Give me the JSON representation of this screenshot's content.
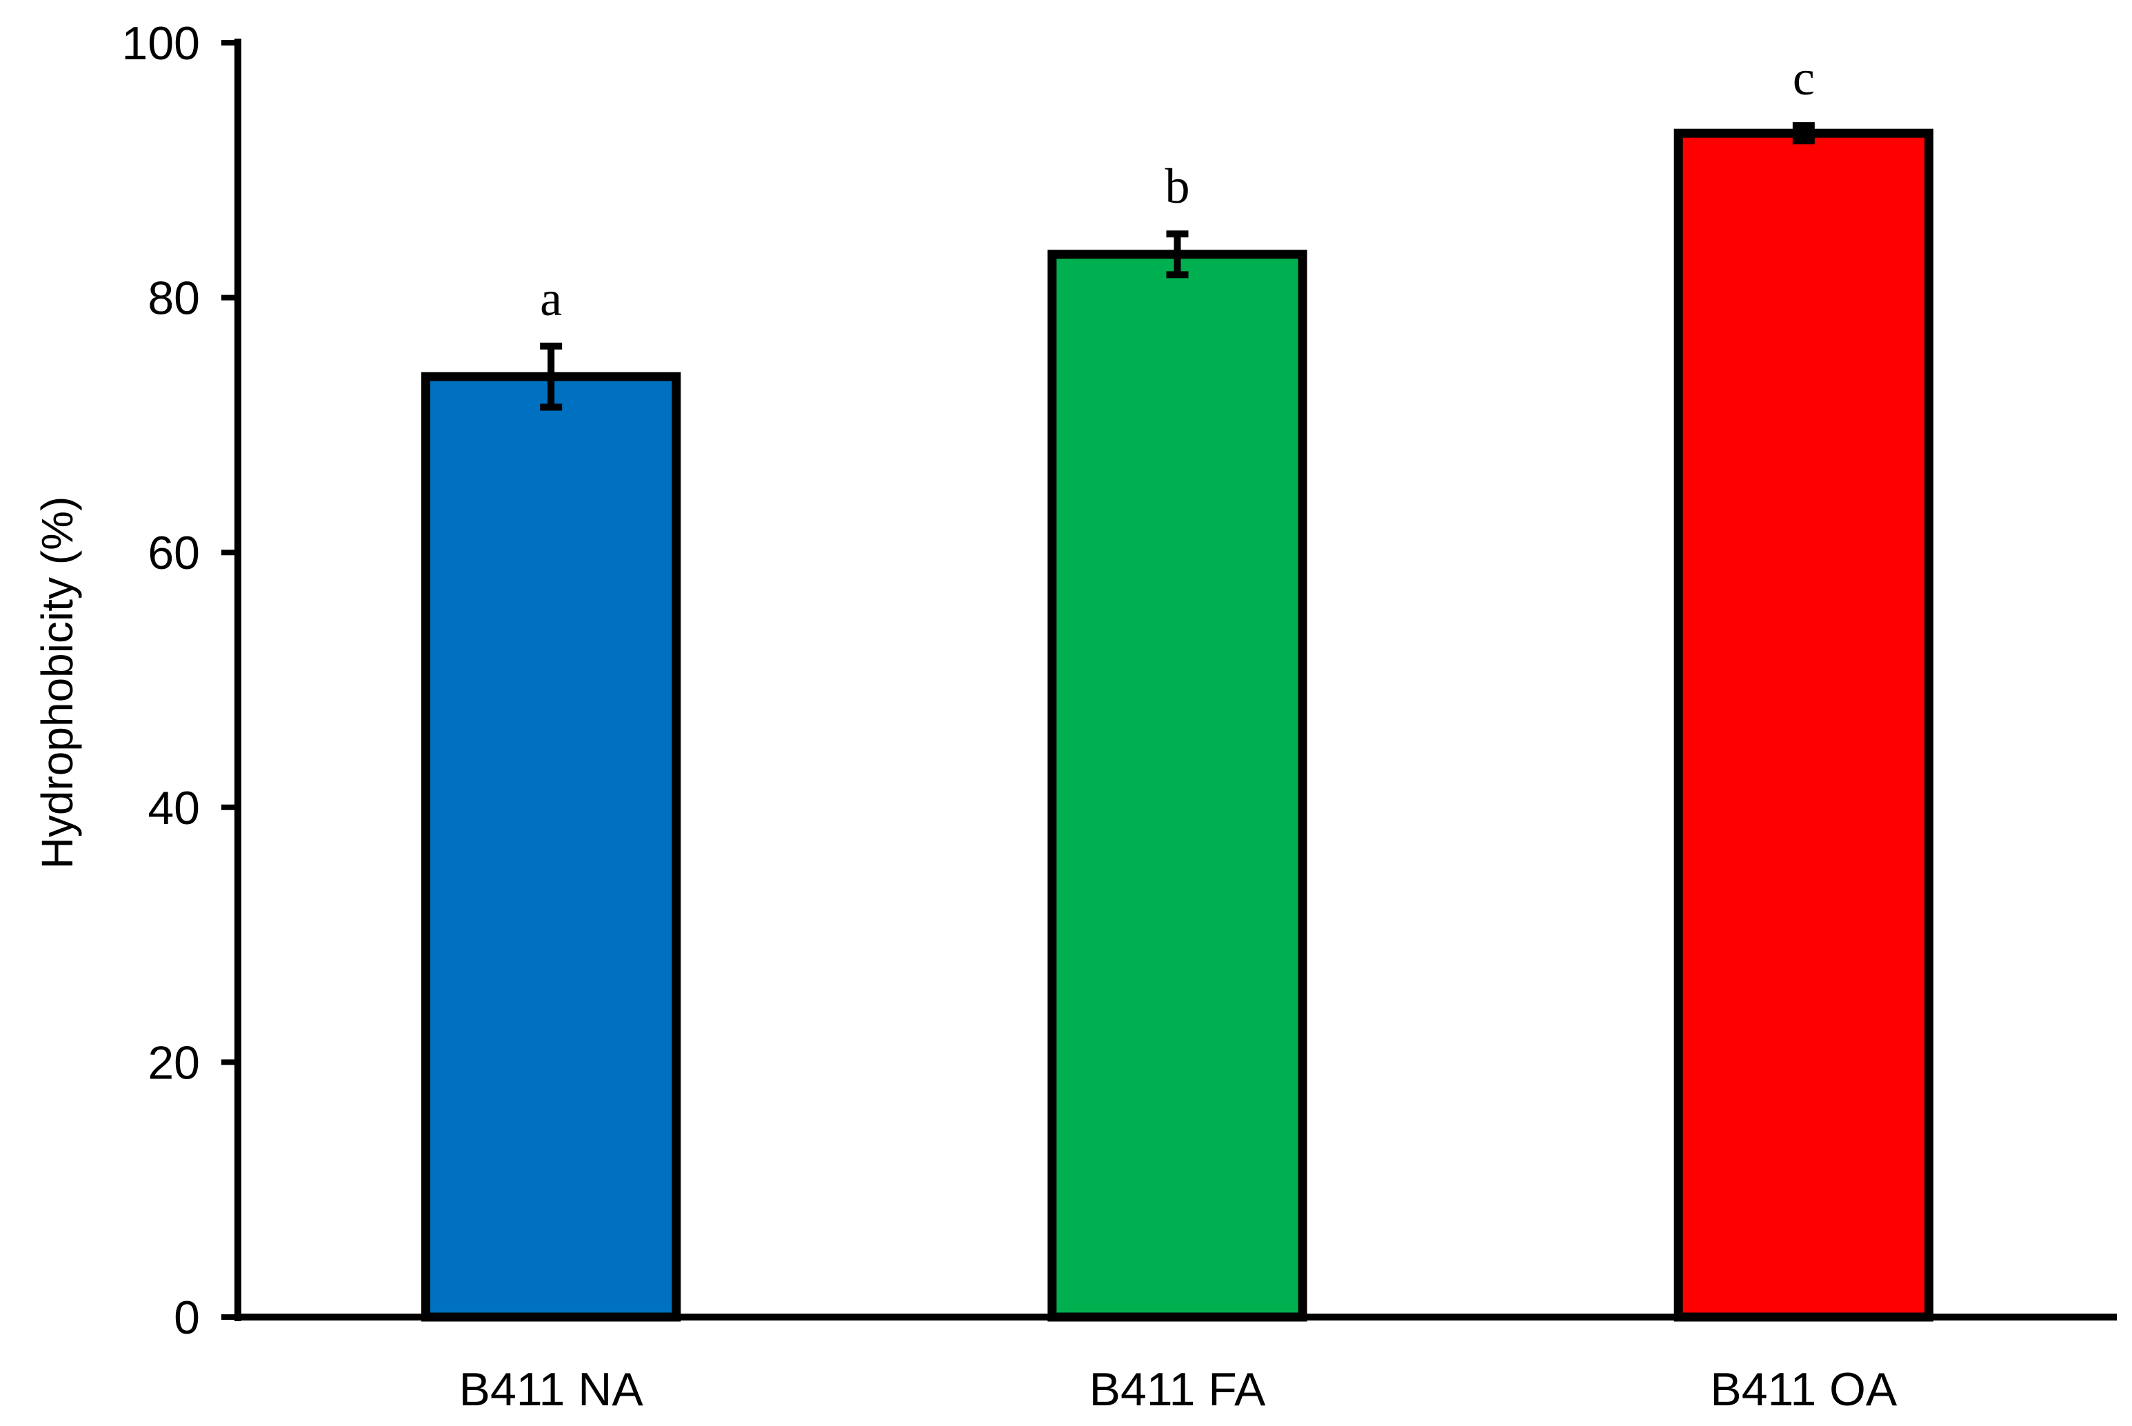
{
  "chart_data": {
    "type": "bar",
    "categories": [
      "B411 NA",
      "B411 FA",
      "B411 OA"
    ],
    "values": [
      73.8,
      83.4,
      92.9
    ],
    "errors": [
      2.4,
      1.6,
      0.6
    ],
    "significance": [
      "a",
      "b",
      "c"
    ],
    "colors": [
      "#0070C0",
      "#00B050",
      "#FF0000"
    ],
    "ylabel": "Hydrophobicity (%)",
    "xlabel": "",
    "ylim": [
      0,
      100
    ],
    "yticks": [
      0,
      20,
      40,
      60,
      80,
      100
    ],
    "grid": false,
    "legend": "none"
  }
}
